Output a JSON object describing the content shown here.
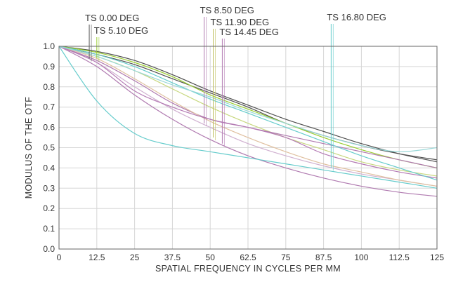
{
  "chart_data": {
    "type": "line",
    "title": "",
    "xlabel": "SPATIAL FREQUENCY IN CYCLES PER MM",
    "ylabel": "MODULUS OF THE OTF",
    "xlim": [
      0,
      125
    ],
    "ylim": [
      0,
      1.0
    ],
    "x_ticks": [
      "0",
      "12.5",
      "25",
      "37.5",
      "50",
      "62.5",
      "75",
      "87.5",
      "100",
      "112.5",
      "125"
    ],
    "y_ticks": [
      "0.0",
      "0.1",
      "0.2",
      "0.3",
      "0.4",
      "0.5",
      "0.6",
      "0.7",
      "0.8",
      "0.9",
      "1.0"
    ],
    "grid": true,
    "x": [
      0,
      12.5,
      25,
      37.5,
      50,
      62.5,
      75,
      87.5,
      100,
      112.5,
      125
    ],
    "field_labels": [
      {
        "text": "TS 0.00 DEG",
        "x": 10,
        "color": "#555555"
      },
      {
        "text": "TS 5.10 DEG",
        "x": 12.5,
        "color": "#9acd32"
      },
      {
        "text": "TS 8.50 DEG",
        "x": 48,
        "color": "#b07ab0"
      },
      {
        "text": "TS 11.90 DEG",
        "x": 51,
        "color": "#c0c060"
      },
      {
        "text": "TS 14.45 DEG",
        "x": 54,
        "color": "#b47ab4"
      },
      {
        "text": "TS 16.80 DEG",
        "x": 90,
        "color": "#66cccc"
      }
    ],
    "series": [
      {
        "color": "#505050",
        "values": [
          1.0,
          0.975,
          0.93,
          0.86,
          0.78,
          0.71,
          0.64,
          0.58,
          0.52,
          0.47,
          0.43
        ]
      },
      {
        "color": "#505050",
        "values": [
          1.0,
          0.96,
          0.91,
          0.84,
          0.77,
          0.7,
          0.62,
          0.56,
          0.51,
          0.47,
          0.44
        ]
      },
      {
        "color": "#9acd32",
        "values": [
          1.0,
          0.97,
          0.92,
          0.85,
          0.76,
          0.69,
          0.62,
          0.55,
          0.49,
          0.44,
          0.4
        ]
      },
      {
        "color": "#c8d880",
        "values": [
          1.0,
          0.95,
          0.88,
          0.79,
          0.7,
          0.62,
          0.55,
          0.49,
          0.43,
          0.39,
          0.36
        ]
      },
      {
        "color": "#b07ab0",
        "values": [
          1.0,
          0.93,
          0.83,
          0.72,
          0.64,
          0.6,
          0.56,
          0.52,
          0.48,
          0.44,
          0.4
        ]
      },
      {
        "color": "#b07ab0",
        "values": [
          1.0,
          0.9,
          0.76,
          0.64,
          0.54,
          0.46,
          0.4,
          0.35,
          0.31,
          0.28,
          0.26
        ]
      },
      {
        "color": "#d0b0d0",
        "values": [
          1.0,
          0.92,
          0.8,
          0.69,
          0.6,
          0.52,
          0.46,
          0.41,
          0.37,
          0.34,
          0.31
        ]
      },
      {
        "color": "#e0c0a0",
        "values": [
          1.0,
          0.94,
          0.84,
          0.73,
          0.63,
          0.55,
          0.48,
          0.42,
          0.38,
          0.34,
          0.31
        ]
      },
      {
        "color": "#b47ab4",
        "values": [
          1.0,
          0.92,
          0.78,
          0.7,
          0.64,
          0.6,
          0.55,
          0.47,
          0.42,
          0.38,
          0.35
        ]
      },
      {
        "color": "#66cccc",
        "values": [
          1.0,
          0.96,
          0.9,
          0.82,
          0.74,
          0.67,
          0.6,
          0.53,
          0.46,
          0.4,
          0.34
        ]
      },
      {
        "color": "#66cccc",
        "values": [
          1.0,
          0.73,
          0.57,
          0.51,
          0.48,
          0.45,
          0.42,
          0.39,
          0.36,
          0.33,
          0.3
        ]
      },
      {
        "color": "#9ad8d8",
        "values": [
          1.0,
          0.95,
          0.88,
          0.81,
          0.75,
          0.68,
          0.62,
          0.56,
          0.51,
          0.48,
          0.5
        ]
      }
    ]
  }
}
